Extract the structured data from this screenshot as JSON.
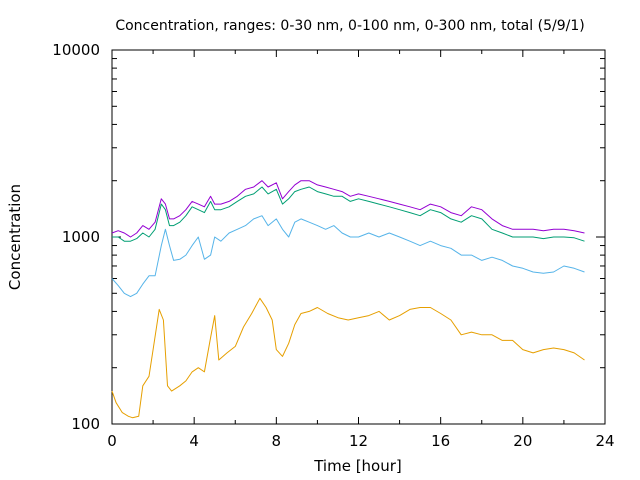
{
  "chart_data": {
    "type": "line",
    "title": "Concentration, ranges: 0-30 nm, 0-100 nm, 0-300 nm, total (5/9/1)",
    "xlabel": "Time [hour]",
    "ylabel": "Concentration",
    "xlim": [
      0,
      24
    ],
    "ylim": [
      100,
      10000
    ],
    "y_scale": "log",
    "grid": false,
    "legend": "none",
    "x_ticks": [
      0,
      4,
      8,
      12,
      16,
      20,
      24
    ],
    "x_tick_labels": [
      "0",
      "4",
      "8",
      "12",
      "16",
      "20",
      "24"
    ],
    "y_ticks": [
      100,
      1000,
      10000
    ],
    "y_tick_labels": [
      "100",
      "1000",
      "10000"
    ],
    "series": [
      {
        "color": "#e69f00",
        "x": [
          0,
          0.2,
          0.5,
          0.8,
          1.0,
          1.3,
          1.5,
          1.8,
          2.0,
          2.3,
          2.5,
          2.7,
          2.9,
          3.1,
          3.3,
          3.6,
          3.9,
          4.2,
          4.5,
          4.8,
          5.0,
          5.2,
          5.6,
          6.0,
          6.4,
          6.8,
          7.2,
          7.5,
          7.8,
          8.0,
          8.3,
          8.6,
          8.9,
          9.2,
          9.6,
          10.0,
          10.5,
          11.0,
          11.5,
          12.0,
          12.5,
          13.0,
          13.5,
          14.0,
          14.5,
          15.0,
          15.5,
          16.0,
          16.5,
          17.0,
          17.5,
          18.0,
          18.5,
          19.0,
          19.5,
          20.0,
          20.5,
          21.0,
          21.5,
          22.0,
          22.5,
          23.0
        ],
        "y": [
          150,
          130,
          115,
          110,
          108,
          110,
          160,
          180,
          250,
          410,
          360,
          160,
          150,
          155,
          160,
          170,
          190,
          200,
          190,
          290,
          380,
          220,
          240,
          260,
          330,
          390,
          470,
          420,
          360,
          250,
          230,
          270,
          340,
          390,
          400,
          420,
          390,
          370,
          360,
          370,
          380,
          400,
          360,
          380,
          410,
          420,
          420,
          390,
          360,
          300,
          310,
          300,
          300,
          280,
          280,
          250,
          240,
          250,
          255,
          250,
          240,
          220
        ]
      },
      {
        "color": "#56b4e9",
        "x": [
          0,
          0.3,
          0.6,
          0.9,
          1.2,
          1.5,
          1.8,
          2.1,
          2.4,
          2.6,
          2.8,
          3.0,
          3.3,
          3.6,
          3.9,
          4.2,
          4.5,
          4.8,
          5.0,
          5.3,
          5.7,
          6.1,
          6.5,
          6.9,
          7.3,
          7.6,
          8.0,
          8.3,
          8.6,
          8.9,
          9.2,
          9.6,
          10.0,
          10.4,
          10.8,
          11.2,
          11.6,
          12.0,
          12.5,
          13.0,
          13.5,
          14.0,
          14.5,
          15.0,
          15.5,
          16.0,
          16.5,
          17.0,
          17.5,
          18.0,
          18.5,
          19.0,
          19.5,
          20.0,
          20.5,
          21.0,
          21.5,
          22.0,
          22.5,
          23.0
        ],
        "y": [
          600,
          550,
          500,
          480,
          500,
          560,
          620,
          620,
          900,
          1100,
          900,
          750,
          760,
          800,
          900,
          1000,
          760,
          800,
          1000,
          950,
          1050,
          1100,
          1150,
          1250,
          1300,
          1150,
          1250,
          1100,
          1000,
          1200,
          1250,
          1200,
          1150,
          1100,
          1150,
          1050,
          1000,
          1000,
          1050,
          1000,
          1050,
          1000,
          950,
          900,
          950,
          900,
          870,
          800,
          800,
          750,
          780,
          750,
          700,
          680,
          650,
          640,
          650,
          700,
          680,
          650
        ]
      },
      {
        "color": "#009e73",
        "x": [
          0,
          0.3,
          0.6,
          0.9,
          1.2,
          1.5,
          1.8,
          2.1,
          2.4,
          2.6,
          2.8,
          3.0,
          3.3,
          3.6,
          3.9,
          4.2,
          4.5,
          4.8,
          5.0,
          5.3,
          5.7,
          6.1,
          6.5,
          6.9,
          7.3,
          7.6,
          8.0,
          8.3,
          8.6,
          8.9,
          9.2,
          9.6,
          10.0,
          10.4,
          10.8,
          11.2,
          11.6,
          12.0,
          12.5,
          13.0,
          13.5,
          14.0,
          14.5,
          15.0,
          15.5,
          16.0,
          16.5,
          17.0,
          17.5,
          18.0,
          18.5,
          19.0,
          19.5,
          20.0,
          20.5,
          21.0,
          21.5,
          22.0,
          22.5,
          23.0
        ],
        "y": [
          1000,
          1000,
          950,
          950,
          980,
          1050,
          1000,
          1100,
          1500,
          1400,
          1150,
          1150,
          1200,
          1300,
          1450,
          1400,
          1350,
          1550,
          1400,
          1400,
          1450,
          1550,
          1650,
          1700,
          1850,
          1700,
          1800,
          1500,
          1600,
          1750,
          1800,
          1850,
          1750,
          1700,
          1650,
          1650,
          1550,
          1600,
          1550,
          1500,
          1450,
          1400,
          1350,
          1300,
          1400,
          1350,
          1250,
          1200,
          1300,
          1250,
          1100,
          1050,
          1000,
          1000,
          1000,
          980,
          1000,
          1000,
          990,
          950
        ]
      },
      {
        "color": "#9400d3",
        "x": [
          0,
          0.3,
          0.6,
          0.9,
          1.2,
          1.5,
          1.8,
          2.1,
          2.4,
          2.6,
          2.8,
          3.0,
          3.3,
          3.6,
          3.9,
          4.2,
          4.5,
          4.8,
          5.0,
          5.3,
          5.7,
          6.1,
          6.5,
          6.9,
          7.3,
          7.6,
          8.0,
          8.3,
          8.6,
          8.9,
          9.2,
          9.6,
          10.0,
          10.4,
          10.8,
          11.2,
          11.6,
          12.0,
          12.5,
          13.0,
          13.5,
          14.0,
          14.5,
          15.0,
          15.5,
          16.0,
          16.5,
          17.0,
          17.5,
          18.0,
          18.5,
          19.0,
          19.5,
          20.0,
          20.5,
          21.0,
          21.5,
          22.0,
          22.5,
          23.0
        ],
        "y": [
          1050,
          1080,
          1050,
          1000,
          1050,
          1150,
          1100,
          1200,
          1600,
          1500,
          1250,
          1250,
          1300,
          1400,
          1550,
          1500,
          1450,
          1650,
          1500,
          1500,
          1550,
          1650,
          1800,
          1850,
          2000,
          1850,
          1950,
          1600,
          1750,
          1900,
          2000,
          2000,
          1900,
          1850,
          1800,
          1750,
          1650,
          1700,
          1650,
          1600,
          1550,
          1500,
          1450,
          1400,
          1500,
          1450,
          1350,
          1300,
          1450,
          1400,
          1250,
          1150,
          1100,
          1100,
          1100,
          1080,
          1100,
          1100,
          1080,
          1050
        ]
      }
    ]
  }
}
